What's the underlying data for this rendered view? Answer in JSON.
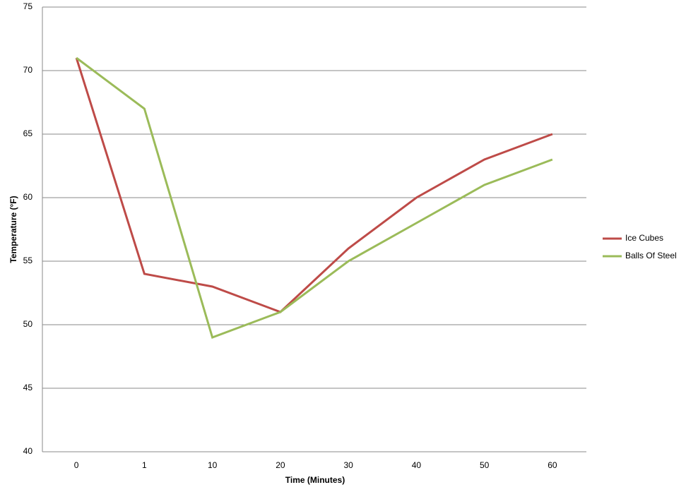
{
  "chart_data": {
    "type": "line",
    "x_label": "Time (Minutes)",
    "y_label": "Temperature (°F)",
    "categories": [
      "0",
      "1",
      "10",
      "20",
      "30",
      "40",
      "50",
      "60"
    ],
    "series": [
      {
        "name": "Ice Cubes",
        "color": "#be4b48",
        "values": [
          71,
          54,
          53,
          51,
          56,
          60,
          63,
          65
        ]
      },
      {
        "name": "Balls Of Steel",
        "color": "#9bbb59",
        "values": [
          71,
          67,
          49,
          51,
          55,
          58,
          61,
          63
        ]
      }
    ],
    "ylim": [
      40,
      75
    ],
    "yticks": [
      40,
      45,
      50,
      55,
      60,
      65,
      70,
      75
    ],
    "grid": true,
    "legend": "right"
  }
}
